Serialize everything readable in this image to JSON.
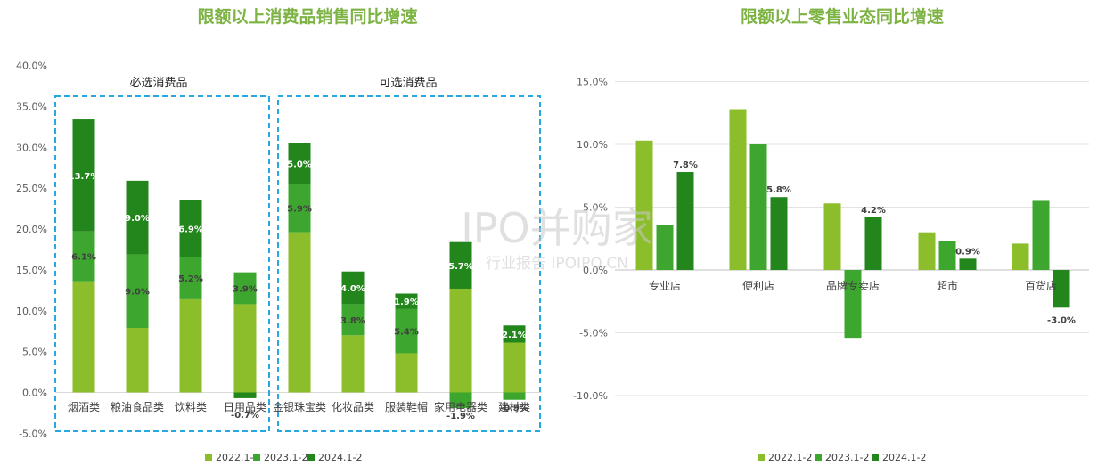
{
  "chart_data": [
    {
      "type": "bar",
      "stacked": true,
      "title": "限额以上消费品销售同比增速",
      "categories": [
        "烟酒类",
        "粮油食品类",
        "饮料类",
        "日用品类",
        "金银珠宝类",
        "化妆品类",
        "服装鞋帽",
        "家用电器类",
        "建材类"
      ],
      "series": [
        {
          "name": "2022.1-2",
          "values": [
            13.6,
            7.9,
            11.4,
            10.8,
            19.6,
            7.0,
            4.8,
            12.7,
            6.1
          ],
          "labels": [
            "",
            "",
            "",
            "",
            "",
            "",
            "",
            "",
            ""
          ]
        },
        {
          "name": "2023.1-2",
          "values": [
            6.1,
            9.0,
            5.2,
            3.9,
            5.9,
            3.8,
            5.4,
            -1.9,
            -0.9
          ],
          "labels": [
            "6.1%",
            "9.0%",
            "5.2%",
            "3.9%",
            "5.9%",
            "3.8%",
            "5.4%",
            "-1.9%",
            "-0.9%"
          ]
        },
        {
          "name": "2024.1-2",
          "values": [
            13.7,
            9.0,
            6.9,
            -0.7,
            5.0,
            4.0,
            1.9,
            5.7,
            2.1
          ],
          "labels": [
            "13.7%",
            "9.0%",
            "6.9%",
            "-0.7%",
            "5.0%",
            "4.0%",
            "1.9%",
            "5.7%",
            "2.1%"
          ]
        }
      ],
      "ylim": [
        -5,
        40
      ],
      "yticks": [
        "-5.0%",
        "0.0%",
        "5.0%",
        "10.0%",
        "15.0%",
        "20.0%",
        "25.0%",
        "30.0%",
        "35.0%",
        "40.0%"
      ],
      "groups": [
        {
          "label": "必选消费品",
          "first": 0,
          "last": 3
        },
        {
          "label": "可选消费品",
          "first": 4,
          "last": 8
        }
      ],
      "legend": "bottom"
    },
    {
      "type": "bar",
      "title": "限额以上零售业态同比增速",
      "categories": [
        "专业店",
        "便利店",
        "品牌专卖店",
        "超市",
        "百货店"
      ],
      "series": [
        {
          "name": "2022.1-2",
          "values": [
            10.3,
            12.8,
            5.3,
            3.0,
            2.1
          ],
          "labels": [
            "",
            "",
            "",
            "",
            ""
          ]
        },
        {
          "name": "2023.1-2",
          "values": [
            3.6,
            10.0,
            -5.4,
            2.3,
            5.5
          ],
          "labels": [
            "",
            "",
            "",
            "",
            ""
          ]
        },
        {
          "name": "2024.1-2",
          "values": [
            7.8,
            5.8,
            4.2,
            0.9,
            -3.0
          ],
          "labels": [
            "7.8%",
            "5.8%",
            "4.2%",
            "0.9%",
            "-3.0%"
          ]
        }
      ],
      "ylim": [
        -10,
        15
      ],
      "yticks": [
        "-10.0%",
        "-5.0%",
        "0.0%",
        "5.0%",
        "10.0%",
        "15.0%"
      ],
      "legend": "bottom"
    }
  ],
  "colors": {
    "2022.1-2": "#8cbd2a",
    "2023.1-2": "#3da62e",
    "2024.1-2": "#23861c",
    "title": "#7cb342",
    "dashed_box": "#29a8e0"
  },
  "watermark": {
    "main": "IPO并购家",
    "sub": "行业报告 IPOIPO.CN"
  }
}
